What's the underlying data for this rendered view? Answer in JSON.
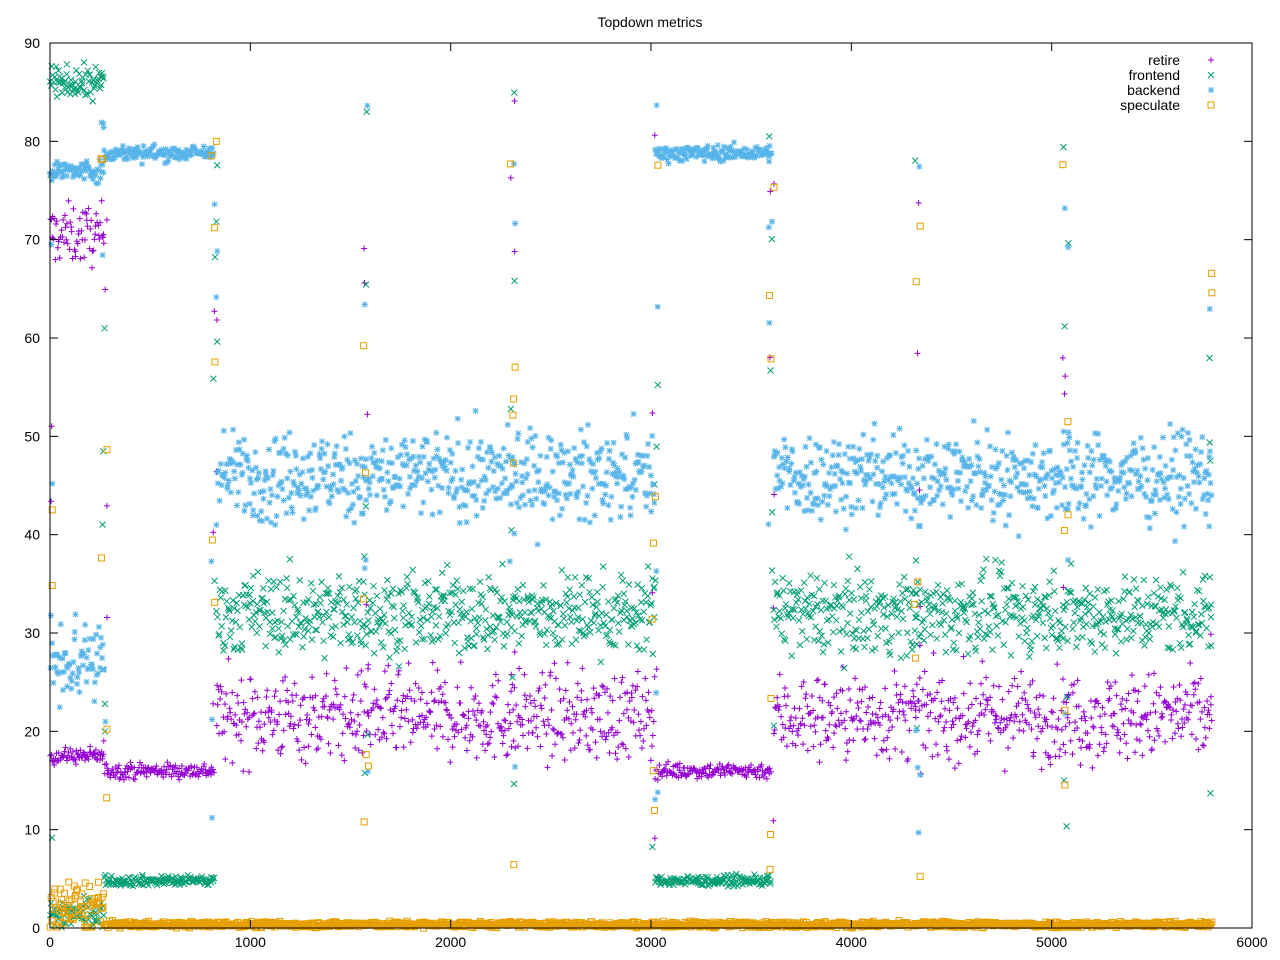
{
  "chart_data": {
    "type": "scatter",
    "title": "Topdown metrics",
    "xlabel": "",
    "ylabel": "",
    "xlim": [
      0,
      6000
    ],
    "ylim": [
      0,
      90
    ],
    "x_ticks": [
      "0",
      "1000",
      "2000",
      "3000",
      "4000",
      "5000",
      "6000"
    ],
    "y_ticks": [
      "0",
      "10",
      "20",
      "30",
      "40",
      "50",
      "60",
      "70",
      "80",
      "90"
    ],
    "legend_position": "top-right",
    "grid": false,
    "series": [
      {
        "name": "retire",
        "marker": "plus",
        "color": "#9400d3",
        "segments": [
          {
            "x": [
              0,
              270
            ],
            "center": 70.5,
            "spread": 1.5,
            "note": "phase-1"
          },
          {
            "x": [
              0,
              270
            ],
            "center": 17.5,
            "spread": 0.4
          },
          {
            "x": [
              270,
              820
            ],
            "center": 16.0,
            "spread": 0.4
          },
          {
            "x": [
              830,
              3020
            ],
            "center": 21.5,
            "spread": 2.2
          },
          {
            "x": [
              3020,
              3600
            ],
            "center": 16.0,
            "spread": 0.4
          },
          {
            "x": [
              3610,
              5800
            ],
            "center": 21.5,
            "spread": 2.2
          }
        ]
      },
      {
        "name": "frontend",
        "marker": "cross",
        "color": "#009e73",
        "segments": [
          {
            "x": [
              0,
              270
            ],
            "center": 86.0,
            "spread": 0.8
          },
          {
            "x": [
              0,
              270
            ],
            "center": 1.5,
            "spread": 0.8
          },
          {
            "x": [
              270,
              820
            ],
            "center": 4.8,
            "spread": 0.25
          },
          {
            "x": [
              830,
              3020
            ],
            "center": 32.0,
            "spread": 2.0
          },
          {
            "x": [
              3020,
              3600
            ],
            "center": 4.8,
            "spread": 0.25
          },
          {
            "x": [
              3610,
              5800
            ],
            "center": 32.0,
            "spread": 2.0
          }
        ]
      },
      {
        "name": "backend",
        "marker": "star",
        "color": "#56b4e9",
        "segments": [
          {
            "x": [
              0,
              270
            ],
            "center": 77.0,
            "spread": 0.5
          },
          {
            "x": [
              0,
              270
            ],
            "center": 27.5,
            "spread": 2.5
          },
          {
            "x": [
              270,
              820
            ],
            "center": 78.8,
            "spread": 0.4
          },
          {
            "x": [
              830,
              3020
            ],
            "center": 46.0,
            "spread": 2.2
          },
          {
            "x": [
              3020,
              3600
            ],
            "center": 78.8,
            "spread": 0.4
          },
          {
            "x": [
              3610,
              5800
            ],
            "center": 46.0,
            "spread": 2.2
          }
        ]
      },
      {
        "name": "speculate",
        "marker": "square",
        "color": "#e69f00",
        "segments": [
          {
            "x": [
              0,
              270
            ],
            "center": 2.0,
            "spread": 1.5
          },
          {
            "x": [
              270,
              5800
            ],
            "center": 0.35,
            "spread": 0.15
          }
        ]
      }
    ],
    "transitions_x": [
      0,
      270,
      820,
      1580,
      2310,
      3020,
      3600,
      4330,
      5070,
      5800
    ]
  }
}
